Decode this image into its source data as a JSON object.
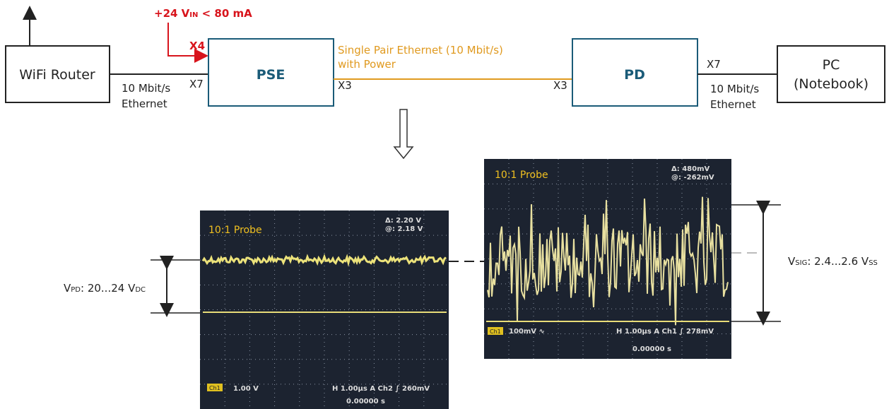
{
  "supply": {
    "prefix": "+24 V",
    "sub": "IN",
    "suffix": " < 80 mA",
    "port": "X4"
  },
  "nodes": [
    {
      "label": "WiFi Router"
    },
    {
      "label": "PSE"
    },
    {
      "label": "PD"
    },
    {
      "label": "PC",
      "label2": "(Notebook)"
    }
  ],
  "links": {
    "left": {
      "line1": "10 Mbit/s",
      "line2": "Ethernet",
      "port": "X7"
    },
    "spe": {
      "line1": "Single Pair Ethernet (10 Mbit/s)",
      "line2": "with Power",
      "port_pse": "X3",
      "port_pd": "X3"
    },
    "right": {
      "line1": "10 Mbit/s",
      "line2": "Ethernet",
      "port": "X7"
    }
  },
  "scopes": [
    {
      "probe": "10:1  Probe",
      "delta": "Δ:  2.20 V",
      "at": "@:  2.18 V",
      "ch": "Ch1",
      "scale": "1.00 V",
      "timebase": "H 1.00µs  A  Ch2  ∫  260mV",
      "offset": "0.00000 s"
    },
    {
      "probe": "10:1  Probe",
      "delta": "Δ:   480mV",
      "at": "@:  -262mV",
      "ch": "Ch1",
      "scale": "100mV ∿",
      "timebase": "H 1.00µs  A  Ch1  ∫  278mV",
      "offset": "0.00000 s"
    }
  ],
  "annotations": {
    "vpd": {
      "v": "V",
      "sub": "PD",
      "mid": ": 20...24 V",
      "sub2": "DC"
    },
    "vsig": {
      "v": "V",
      "sub": "SIG",
      "mid": ": 2.4...2.6 V",
      "sub2": "SS"
    }
  }
}
